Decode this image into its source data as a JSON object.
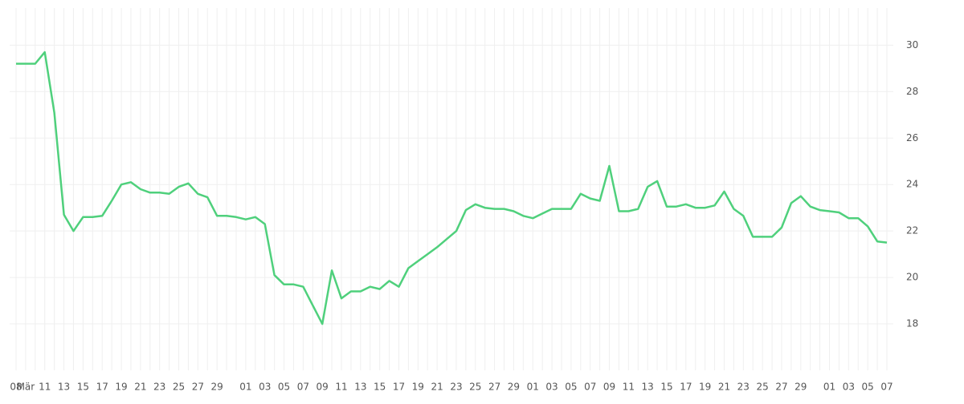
{
  "chart_data": {
    "type": "line",
    "categories": [
      "08",
      "Mär",
      null,
      "11",
      null,
      "13",
      null,
      "15",
      null,
      "17",
      null,
      "19",
      null,
      "21",
      null,
      "23",
      null,
      "25",
      null,
      "27",
      null,
      "29",
      null,
      null,
      "01",
      null,
      "03",
      null,
      "05",
      null,
      "07",
      null,
      "09",
      null,
      "11",
      null,
      "13",
      null,
      "15",
      null,
      "17",
      null,
      "19",
      null,
      "21",
      null,
      "23",
      null,
      "25",
      null,
      "27",
      null,
      "29",
      null,
      "01",
      null,
      "03",
      null,
      "05",
      null,
      "07",
      null,
      "09",
      null,
      "11",
      null,
      "13",
      null,
      "15",
      null,
      "17",
      null,
      "19",
      null,
      "21",
      null,
      "23",
      null,
      "25",
      null,
      "27",
      null,
      "29",
      null,
      null,
      "01",
      null,
      "03",
      null,
      "05",
      null,
      "07"
    ],
    "values": [
      29.2,
      29.2,
      29.2,
      29.7,
      27.1,
      22.7,
      22.0,
      22.6,
      22.6,
      22.65,
      23.3,
      24.0,
      24.1,
      23.8,
      23.65,
      23.65,
      23.6,
      23.9,
      24.05,
      23.6,
      23.45,
      22.65,
      22.65,
      22.6,
      22.5,
      22.6,
      22.3,
      20.1,
      19.7,
      19.7,
      19.6,
      18.8,
      18.0,
      20.3,
      19.1,
      19.4,
      19.4,
      19.6,
      19.5,
      19.85,
      19.6,
      20.4,
      20.7,
      21.0,
      21.3,
      21.65,
      22.0,
      22.9,
      23.15,
      23.0,
      22.95,
      22.95,
      22.85,
      22.65,
      22.55,
      22.75,
      22.95,
      22.95,
      22.95,
      23.6,
      23.4,
      23.3,
      24.8,
      22.85,
      22.85,
      22.95,
      23.9,
      24.15,
      23.05,
      23.05,
      23.15,
      23.0,
      23.0,
      23.1,
      23.7,
      22.95,
      22.65,
      21.75,
      21.75,
      21.75,
      22.15,
      23.2,
      23.5,
      23.05,
      22.9,
      22.85,
      22.8,
      22.55,
      22.55,
      22.2,
      21.55,
      21.5
    ],
    "color": "#4fd07c",
    "ylim": [
      16,
      31.6
    ],
    "yticks": [
      18,
      20,
      22,
      24,
      26,
      28,
      30
    ],
    "grid": true
  }
}
